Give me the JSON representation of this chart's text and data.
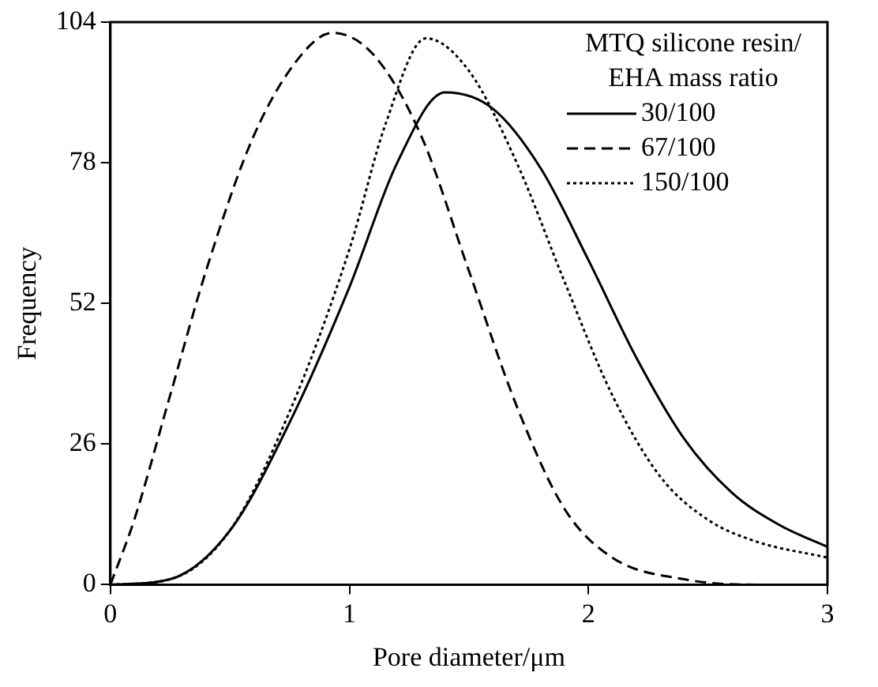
{
  "chart_data": {
    "type": "line",
    "xlabel": "Pore diameter/μm",
    "ylabel": "Frequency",
    "legend_title": "MTQ silicone resin/\nEHA mass ratio",
    "legend": "top right",
    "marker": "none",
    "grid": false,
    "xlim": [
      0,
      3
    ],
    "xticks": [
      0,
      1,
      2,
      3
    ],
    "ylim": [
      0,
      104
    ],
    "yticks": [
      0,
      26,
      52,
      78,
      104
    ],
    "series": [
      {
        "name": "30/100",
        "color": "#000000",
        "line_style": "solid",
        "x": [
          0,
          0.25,
          0.5,
          0.75,
          1.0,
          1.2,
          1.4,
          1.6,
          1.8,
          2.0,
          2.2,
          2.4,
          2.6,
          2.8,
          3.0
        ],
        "values": [
          0,
          1,
          10,
          30,
          55,
          78,
          91,
          88,
          77,
          60,
          42,
          27,
          17,
          11,
          7
        ]
      },
      {
        "name": "67/100",
        "color": "#000000",
        "line_style": "dashed",
        "x": [
          0,
          0.1,
          0.25,
          0.4,
          0.6,
          0.8,
          0.93,
          1.1,
          1.3,
          1.5,
          1.7,
          1.9,
          2.1,
          2.4,
          2.7,
          3.0
        ],
        "values": [
          0,
          12,
          35,
          58,
          83,
          98,
          102,
          98,
          83,
          58,
          33,
          14,
          5,
          1,
          0,
          0
        ]
      },
      {
        "name": "150/100",
        "color": "#000000",
        "line_style": "dotted",
        "x": [
          0,
          0.25,
          0.5,
          0.75,
          1.0,
          1.15,
          1.32,
          1.5,
          1.7,
          1.9,
          2.1,
          2.3,
          2.5,
          2.7,
          3.0
        ],
        "values": [
          0,
          1,
          10,
          32,
          62,
          85,
          101,
          95,
          78,
          56,
          35,
          20,
          12,
          8,
          5
        ]
      }
    ]
  }
}
